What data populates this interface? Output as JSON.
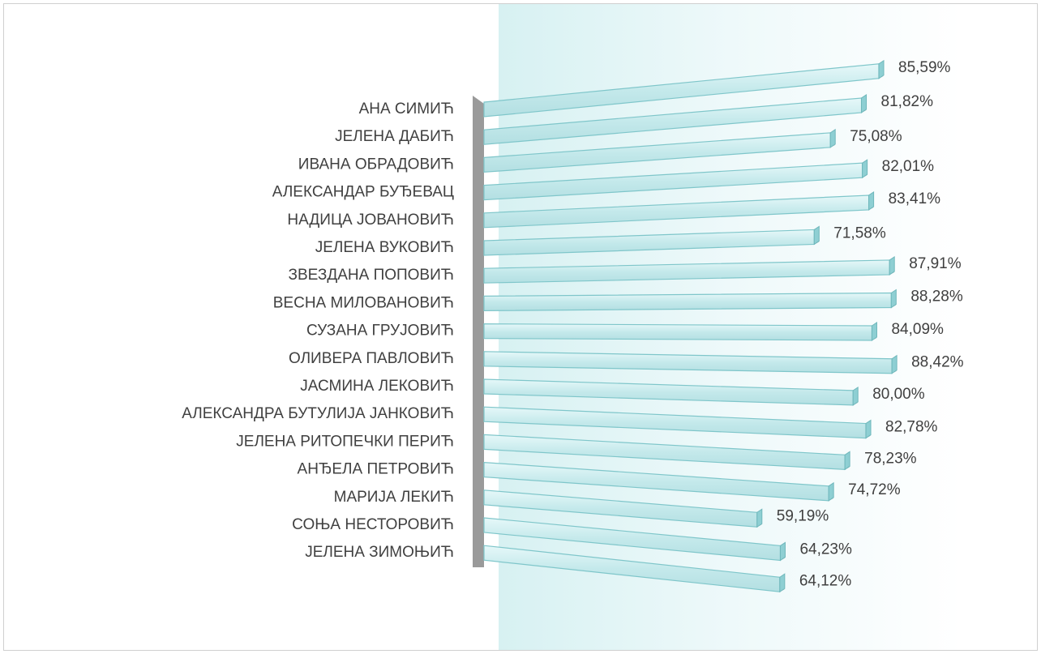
{
  "chart_data": {
    "type": "bar3d",
    "orientation": "horizontal",
    "categories": [
      "АНА СИМИЋ",
      "ЈЕЛЕНА ДАБИЋ",
      "ИВАНА ОБРАДОВИЋ",
      "АЛЕКСАНДАР БУЂЕВАЦ",
      "НАДИЦА ЈОВАНОВИЋ",
      "ЈЕЛЕНА ВУКОВИЋ",
      "ЗВЕЗДАНА ПОПОВИЋ",
      "ВЕСНА МИЛОВАНОВИЋ",
      "СУЗАНА ГРУЈОВИЋ",
      "ОЛИВЕРА ПАВЛОВИЋ",
      "ЈАСМИНА ЛЕКОВИЋ",
      "АЛЕКСАНДРА БУТУЛИЈА ЈАНКОВИЋ",
      "ЈЕЛЕНА РИТОПЕЧКИ ПЕРИЋ",
      "АНЂЕЛА ПЕТРОВИЋ",
      "МАРИЈА ЛЕКИЋ",
      "СОЊА НЕСТОРОВИЋ",
      "ЈЕЛЕНА ЗИМОЊИЋ"
    ],
    "values": [
      85.59,
      81.82,
      75.08,
      82.01,
      83.41,
      71.58,
      87.91,
      88.28,
      84.09,
      88.42,
      80.0,
      82.78,
      78.23,
      74.72,
      59.19,
      64.23,
      64.12
    ],
    "value_labels": [
      "85,59%",
      "81,82%",
      "75,08%",
      "82,01%",
      "83,41%",
      "71,58%",
      "87,91%",
      "88,28%",
      "84,09%",
      "88,42%",
      "80,00%",
      "82,78%",
      "78,23%",
      "74,72%",
      "59,19%",
      "64,23%",
      "64,12%"
    ],
    "color": "#cdeff1",
    "xlim": [
      0,
      100
    ]
  }
}
